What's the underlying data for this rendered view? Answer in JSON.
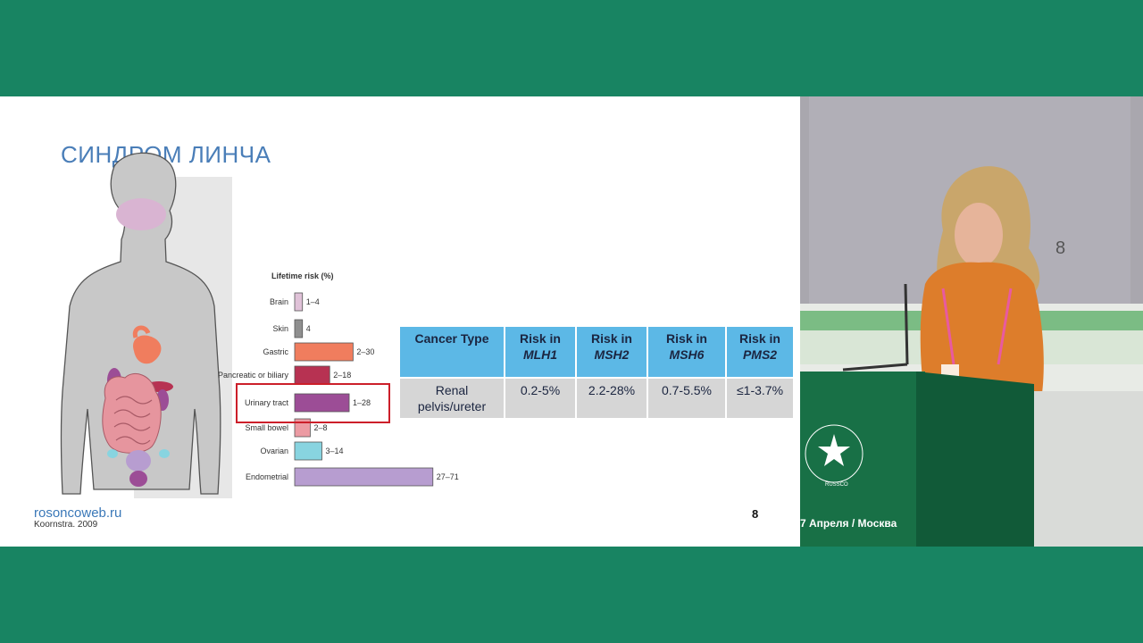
{
  "slide": {
    "title": "СИНДРОМ ЛИНЧА",
    "source_site": "rosoncoweb.ru",
    "citation": "Koornstra. 2009",
    "page_number": "8"
  },
  "lifetime_risk": {
    "title": "Lifetime risk (%)",
    "highlighted": "Urinary tract",
    "items": [
      {
        "label": "Brain",
        "range": "1–4",
        "low": 1,
        "high": 4,
        "color": "#e0c2d8"
      },
      {
        "label": "Skin",
        "range": "4",
        "low": 4,
        "high": 4,
        "color": "#8f8f8f"
      },
      {
        "label": "Gastric",
        "range": "2–30",
        "low": 2,
        "high": 30,
        "color": "#f07d5e"
      },
      {
        "label": "Pancreatic or biliary",
        "range": "2–18",
        "low": 2,
        "high": 18,
        "color": "#b73252"
      },
      {
        "label": "Urinary tract",
        "range": "1–28",
        "low": 1,
        "high": 28,
        "color": "#9c4d96"
      },
      {
        "label": "Small bowel",
        "range": "2–8",
        "low": 2,
        "high": 8,
        "color": "#ec9ba3"
      },
      {
        "label": "Ovarian",
        "range": "3–14",
        "low": 3,
        "high": 14,
        "color": "#88d4e0"
      },
      {
        "label": "Endometrial",
        "range": "27–71",
        "low": 27,
        "high": 71,
        "color": "#b79dd0"
      }
    ]
  },
  "risk_table": {
    "headers": [
      {
        "line1": "Cancer Type",
        "line2": ""
      },
      {
        "line1": "Risk in",
        "line2": "MLH1"
      },
      {
        "line1": "Risk in",
        "line2": "MSH2"
      },
      {
        "line1": "Risk in",
        "line2": "MSH6"
      },
      {
        "line1": "Risk in",
        "line2": "PMS2"
      }
    ],
    "rows": [
      {
        "cells": [
          "Renal pelvis/ureter",
          "0.2-5%",
          "2.2-28%",
          "0.7-5.5%",
          "≤1-3.7%"
        ]
      }
    ]
  },
  "video": {
    "stage_number": "8",
    "event_text": "7 Апреля / Москва",
    "podium_logo": "RUSSCO"
  }
}
